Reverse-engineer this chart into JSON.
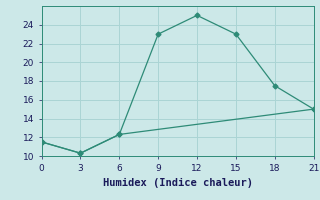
{
  "xlabel": "Humidex (Indice chaleur)",
  "xlim": [
    0,
    21
  ],
  "ylim": [
    10,
    26
  ],
  "xticks": [
    0,
    3,
    6,
    9,
    12,
    15,
    18,
    21
  ],
  "yticks": [
    10,
    12,
    14,
    16,
    18,
    20,
    22,
    24
  ],
  "line1_x": [
    0,
    3,
    6,
    9,
    12,
    15,
    18,
    21
  ],
  "line1_y": [
    11.5,
    10.3,
    12.3,
    23.0,
    25.0,
    23.0,
    17.5,
    15.0
  ],
  "line2_x": [
    0,
    3,
    6,
    21
  ],
  "line2_y": [
    11.5,
    10.3,
    12.3,
    15.0
  ],
  "line_color": "#2e8b77",
  "bg_color": "#cce8e8",
  "grid_color": "#aad4d4",
  "marker": "D",
  "marker_size": 2.5,
  "line_width": 0.9,
  "label_fontsize": 7.5,
  "tick_fontsize": 6.5
}
